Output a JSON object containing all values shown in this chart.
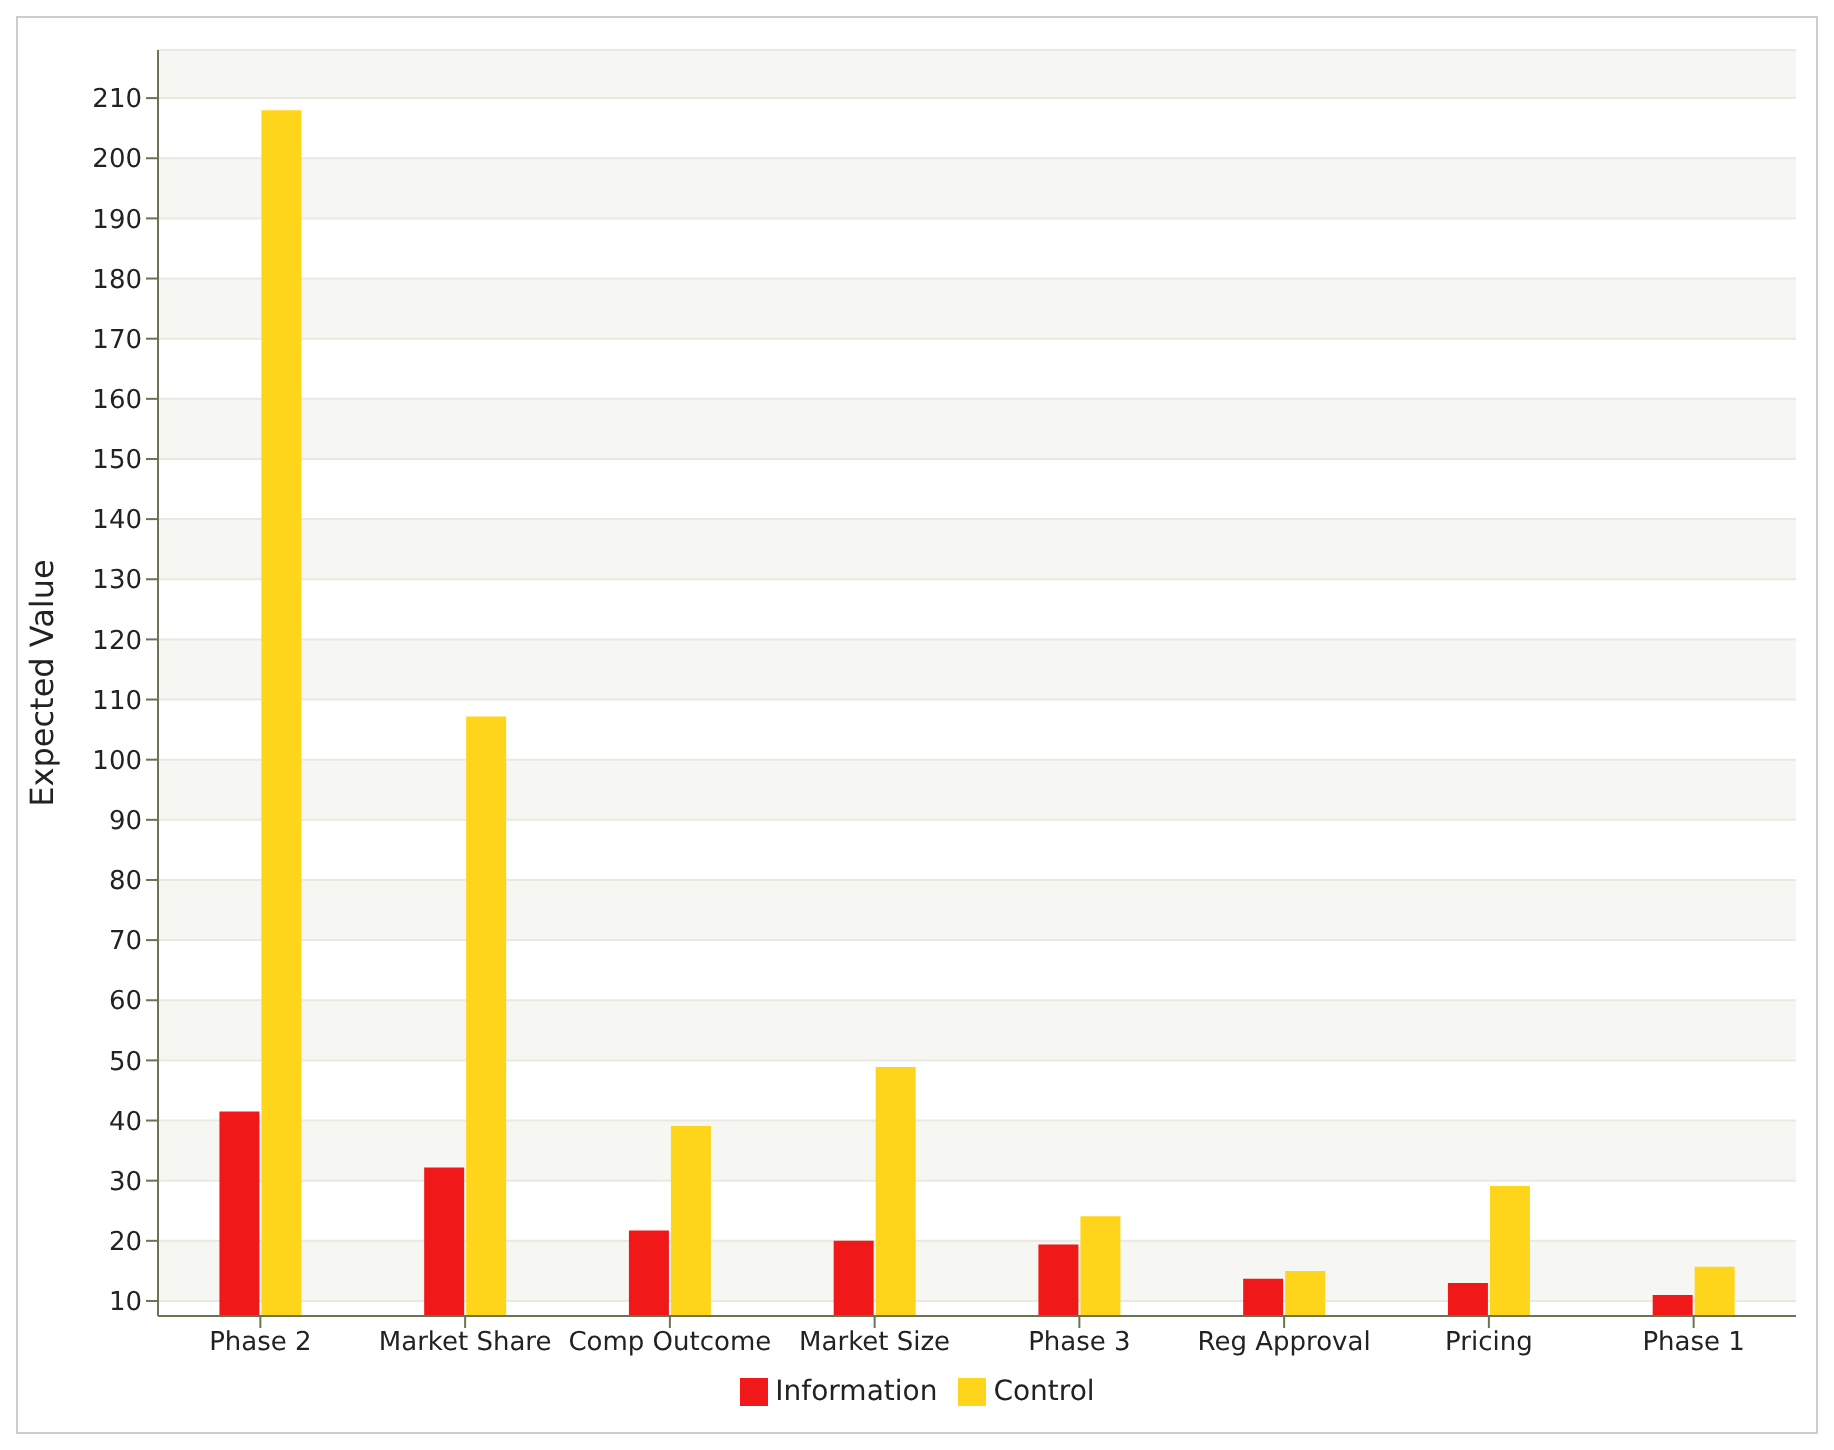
{
  "chart_data": {
    "type": "bar",
    "ylabel": "Expected Value",
    "categories": [
      "Phase 2",
      "Market Share",
      "Comp Outcome",
      "Market Size",
      "Phase 3",
      "Reg Approval",
      "Pricing",
      "Phase 1"
    ],
    "series": [
      {
        "name": "Information",
        "color": "#f01818",
        "values": [
          41.5,
          32.2,
          21.7,
          20,
          19.4,
          13.7,
          13,
          11
        ]
      },
      {
        "name": "Control",
        "color": "#ffd51c",
        "values": [
          208,
          107.2,
          39.1,
          48.9,
          24.1,
          15,
          29.1,
          15.7
        ]
      }
    ],
    "ylim": [
      7.5,
      218
    ],
    "yticks": [
      10,
      20,
      30,
      40,
      50,
      60,
      70,
      80,
      90,
      100,
      110,
      120,
      130,
      140,
      150,
      160,
      170,
      180,
      190,
      200,
      210
    ],
    "grid": "y",
    "legend": "bottom"
  }
}
